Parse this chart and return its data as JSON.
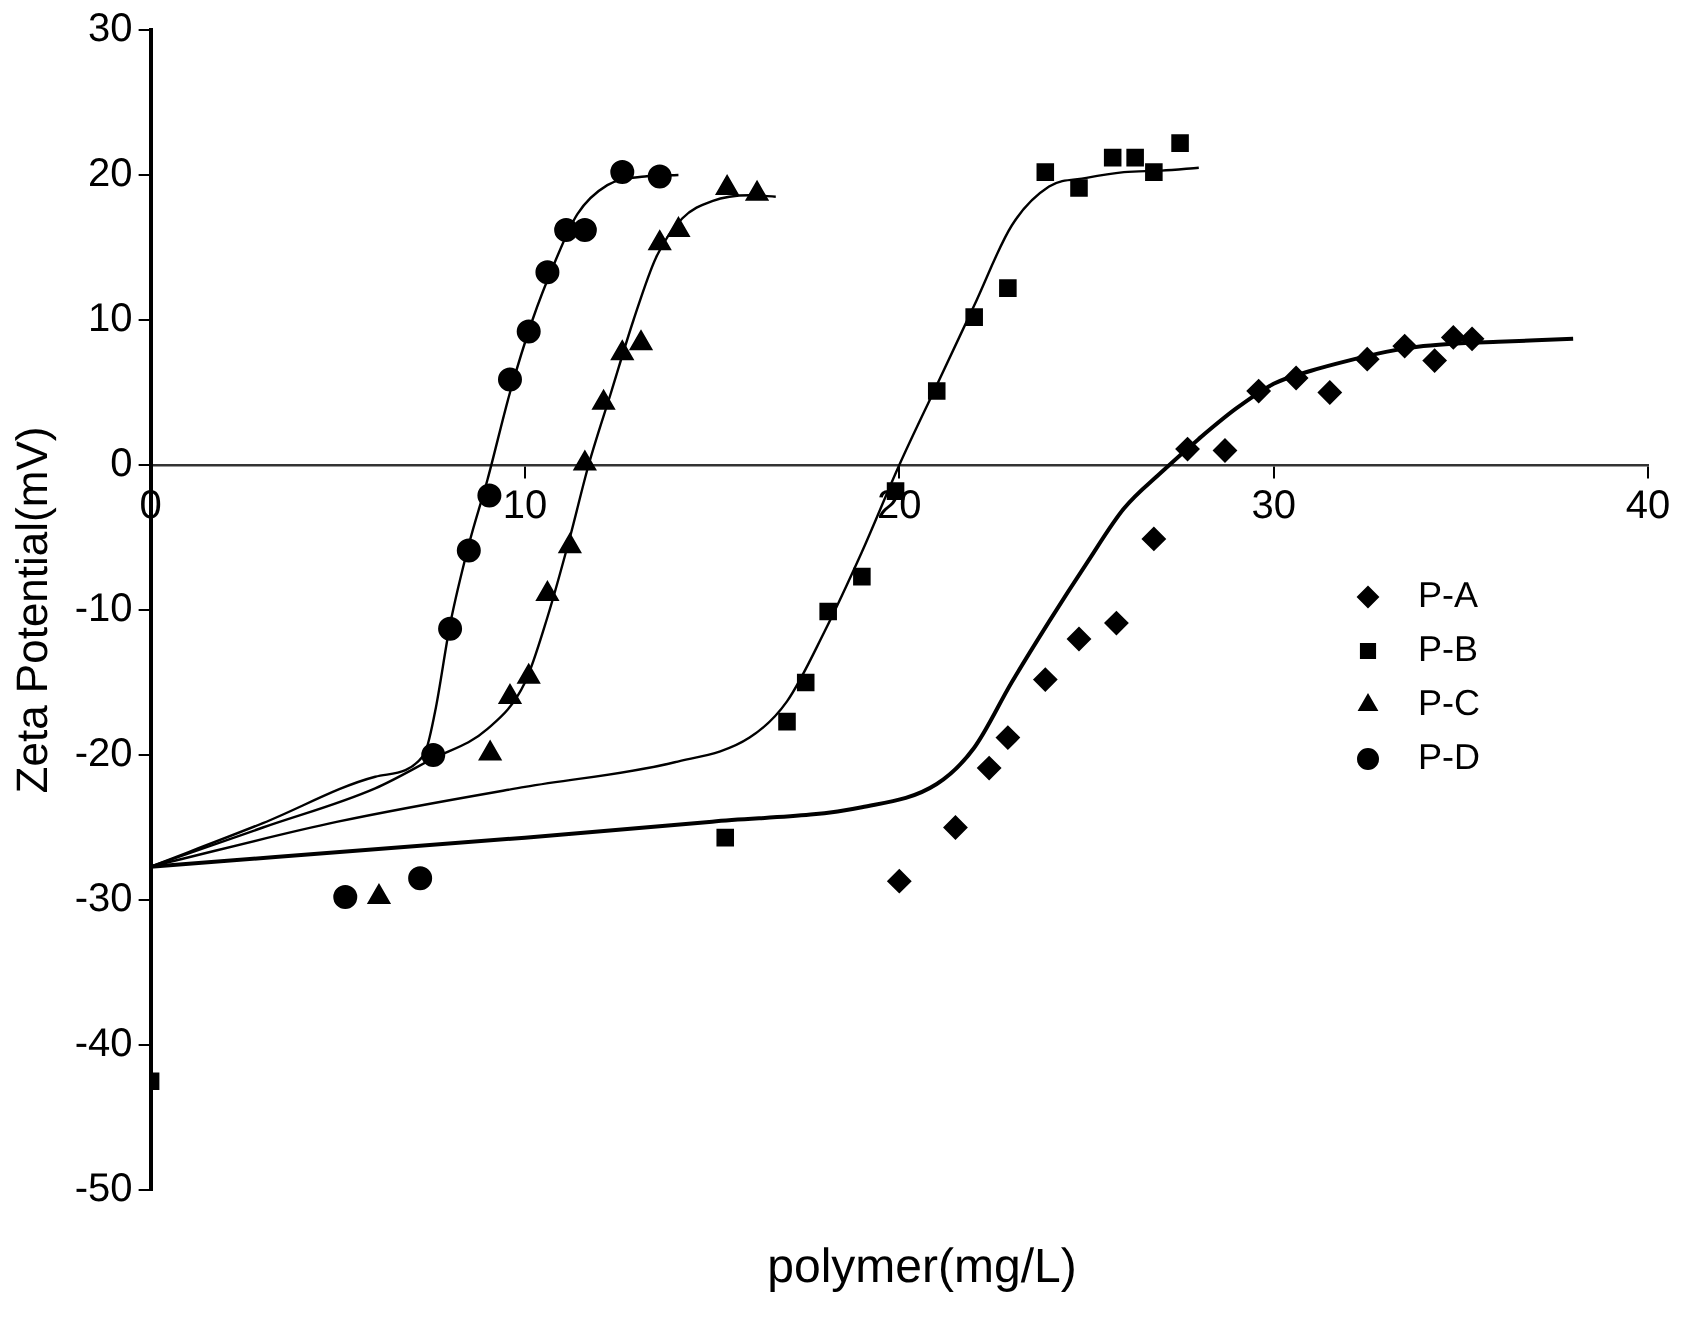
{
  "chart_data": {
    "type": "scatter",
    "xlabel": "polymer(mg/L)",
    "ylabel": "Zeta Potential(mV)",
    "xlim": [
      0,
      40
    ],
    "xticks": [
      0,
      10,
      20,
      30,
      40
    ],
    "ylim": [
      -50,
      30
    ],
    "yticks": [
      -50,
      -40,
      -30,
      -20,
      -10,
      0,
      10,
      20,
      30
    ],
    "grid": false,
    "legend": "right",
    "series": [
      {
        "name": "P-A",
        "color": "#000000",
        "marker": "diamond",
        "x": [
          20.0,
          21.5,
          22.4,
          22.9,
          23.9,
          24.8,
          25.8,
          26.8,
          27.7,
          28.7,
          29.6,
          30.6,
          31.5,
          32.5,
          33.5,
          34.3,
          34.8,
          35.3
        ],
        "values": [
          -28.7,
          -25,
          -20.9,
          -18.8,
          -14.8,
          -12,
          -10.9,
          -5.1,
          1.1,
          1.0,
          5.1,
          6.0,
          5.0,
          7.3,
          8.2,
          7.2,
          8.8,
          8.7
        ]
      },
      {
        "name": "P-B",
        "color": "#000000",
        "marker": "square",
        "x": [
          0,
          15.35,
          17.0,
          17.5,
          18.1,
          19.0,
          19.9,
          21.0,
          22.0,
          22.9,
          23.9,
          24.8,
          25.7,
          26.3,
          26.8,
          27.5
        ],
        "values": [
          -42.5,
          -25.7,
          -17.7,
          -15,
          -10.1,
          -7.7,
          -1.8,
          5.1,
          10.2,
          12.2,
          20.2,
          19.1,
          21.2,
          21.2,
          20.2,
          22.2
        ]
      },
      {
        "name": "P-C",
        "color": "#000000",
        "marker": "triangle",
        "x": [
          6.1,
          9.07,
          9.6,
          10.1,
          10.6,
          11.2,
          11.6,
          12.1,
          12.6,
          13.1,
          13.6,
          14.1,
          15.4,
          16.2
        ],
        "values": [
          -29.8,
          -19.9,
          -16,
          -14.6,
          -8.9,
          -5.6,
          0.1,
          4.3,
          7.7,
          8.4,
          15.3,
          16.2,
          19.1,
          18.7
        ]
      },
      {
        "name": "P-D",
        "color": "#000000",
        "marker": "circle",
        "x": [
          5.2,
          7.2,
          7.55,
          8.0,
          8.5,
          9.05,
          9.6,
          10.1,
          10.6,
          11.1,
          11.6,
          12.6,
          13.6
        ],
        "values": [
          -29.8,
          -28.5,
          -20,
          -11.3,
          -5.9,
          -2.1,
          5.9,
          9.2,
          13.3,
          16.2,
          16.2,
          20.2,
          19.9
        ]
      },
      {
        "type": "line",
        "color": "#000000",
        "marker": "none",
        "x": [
          0,
          10,
          15,
          19,
          21,
          22,
          23,
          24,
          25,
          26,
          27,
          28,
          29,
          30,
          31,
          32,
          33,
          34,
          35,
          36,
          38
        ],
        "values": [
          -27.7,
          -25.7,
          -24.6,
          -23.6,
          -22,
          -19.5,
          -15,
          -10.8,
          -6.8,
          -3,
          -0.5,
          1.8,
          3.9,
          5.6,
          6.5,
          7.2,
          7.8,
          8.2,
          8.4,
          8.5,
          8.7
        ]
      },
      {
        "type": "line",
        "color": "#000000",
        "marker": "none",
        "x": [
          0,
          5,
          10,
          14,
          16,
          17,
          18,
          19,
          20,
          21,
          22,
          23,
          24,
          25,
          26,
          27,
          28
        ],
        "values": [
          -27.7,
          -24.6,
          -22.2,
          -20.5,
          -18.8,
          -16.3,
          -11.5,
          -6,
          0,
          5.5,
          11,
          16.5,
          19.2,
          19.8,
          20.2,
          20.3,
          20.5
        ]
      },
      {
        "type": "line",
        "color": "#000000",
        "marker": "none",
        "x": [
          0,
          3,
          6,
          7.5,
          9,
          10,
          10.6,
          11.2,
          11.7,
          12.3,
          12.9,
          13.5,
          14.2,
          15,
          16,
          16.7
        ],
        "values": [
          -27.7,
          -25,
          -22.3,
          -20.3,
          -18.2,
          -15,
          -10.5,
          -5,
          0,
          5,
          10,
          14.3,
          17,
          18.2,
          18.6,
          18.5
        ]
      },
      {
        "type": "line",
        "color": "#000000",
        "marker": "none",
        "x": [
          0,
          3,
          6,
          7.3,
          7.6,
          8,
          8.5,
          9,
          9.6,
          10.2,
          10.8,
          11.4,
          12.2,
          13.2,
          14.1
        ],
        "values": [
          -27.7,
          -24.7,
          -21.5,
          -20,
          -17,
          -11,
          -5.5,
          -1,
          5,
          10,
          14,
          17.3,
          19.3,
          19.9,
          20
        ]
      }
    ]
  }
}
